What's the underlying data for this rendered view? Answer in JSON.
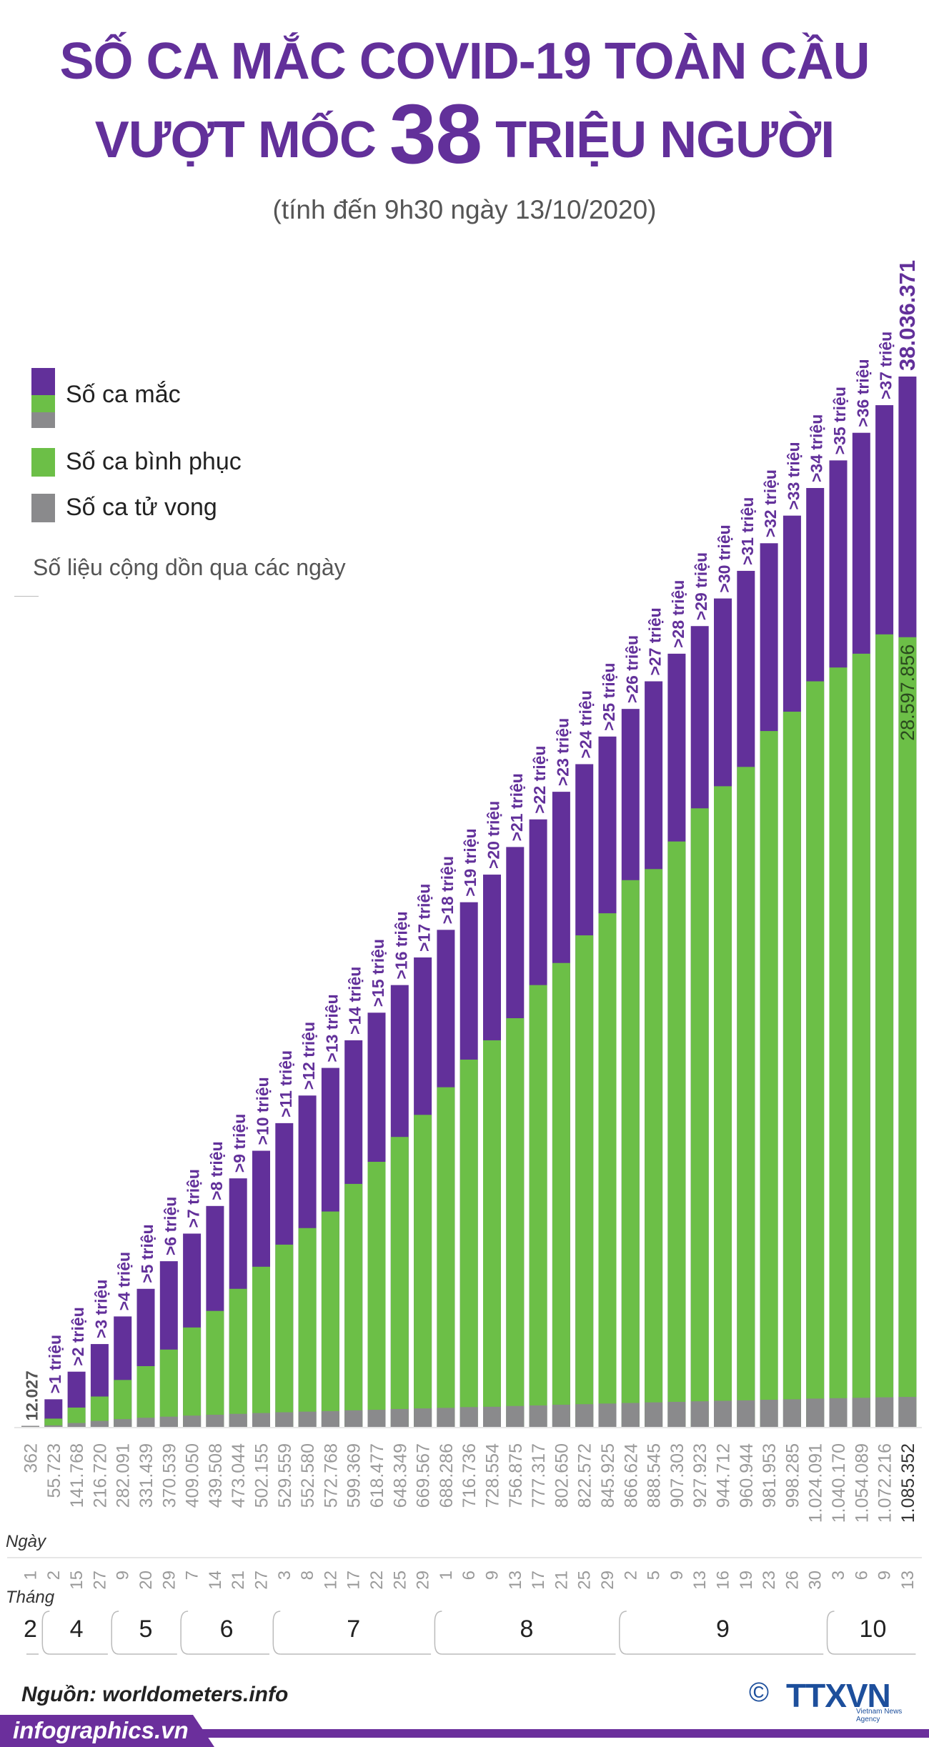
{
  "title": {
    "line1": "SỐ CA MẮC COVID-19 TOÀN CẦU",
    "line2_pre": "VƯỢT MỐC ",
    "line2_big": "38",
    "line2_post": " TRIỆU NGƯỜI",
    "subtitle": "(tính đến 9h30 ngày 13/10/2020)"
  },
  "legend": {
    "cases": "Số ca mắc",
    "recovered": "Số ca bình phục",
    "deaths": "Số ca tử vong",
    "note": "Số liệu cộng dồn qua các ngày"
  },
  "colors": {
    "cases": "#62309a",
    "recovered": "#6cbf47",
    "deaths": "#8a8a8c",
    "title": "#62309a",
    "source_logo": "#1d4f9c"
  },
  "axis_labels": {
    "day": "Ngày",
    "month": "Tháng"
  },
  "chart_data": {
    "type": "bar",
    "stacked": true,
    "series_order": [
      "deaths",
      "recovered",
      "cases"
    ],
    "days": [
      "1",
      "2",
      "15",
      "27",
      "9",
      "20",
      "29",
      "7",
      "14",
      "21",
      "27",
      "3",
      "8",
      "12",
      "17",
      "22",
      "25",
      "29",
      "1",
      "6",
      "9",
      "13",
      "17",
      "21",
      "25",
      "29",
      "2",
      "5",
      "9",
      "13",
      "16",
      "19",
      "23",
      "26",
      "30",
      "3",
      "6",
      "9",
      "13"
    ],
    "months": [
      {
        "label": "2",
        "count": 1
      },
      {
        "label": "4",
        "count": 3
      },
      {
        "label": "5",
        "count": 3
      },
      {
        "label": "6",
        "count": 4
      },
      {
        "label": "7",
        "count": 7
      },
      {
        "label": "8",
        "count": 8
      },
      {
        "label": "9",
        "count": 9
      },
      {
        "label": "10",
        "count": 4
      }
    ],
    "case_labels": [
      "12.027",
      ">1 triệu",
      ">2 triệu",
      ">3 triệu",
      ">4 triệu",
      ">5 triệu",
      ">6 triệu",
      ">7 triệu",
      ">8 triệu",
      ">9 triệu",
      ">10 triệu",
      ">11 triệu",
      ">12 triệu",
      ">13 triệu",
      ">14 triệu",
      ">15 triệu",
      ">16 triệu",
      ">17 triệu",
      ">18 triệu",
      ">19 triệu",
      ">20 triệu",
      ">21 triệu",
      ">22 triệu",
      ">23 triệu",
      ">24 triệu",
      ">25 triệu",
      ">26 triệu",
      ">27 triệu",
      ">28 triệu",
      ">29 triệu",
      ">30 triệu",
      ">31 triệu",
      ">32 triệu",
      ">33 triệu",
      ">34 triệu",
      ">35 triệu",
      ">36 triệu",
      ">37 triệu",
      "38.036.371"
    ],
    "cases": [
      12027,
      1000000,
      2000000,
      3000000,
      4000000,
      5000000,
      6000000,
      7000000,
      8000000,
      9000000,
      10000000,
      11000000,
      12000000,
      13000000,
      14000000,
      15000000,
      16000000,
      17000000,
      18000000,
      19000000,
      20000000,
      21000000,
      22000000,
      23000000,
      24000000,
      25000000,
      26000000,
      27000000,
      28000000,
      29000000,
      30000000,
      31000000,
      32000000,
      33000000,
      34000000,
      35000000,
      36000000,
      37000000,
      38036371
    ],
    "recovered": [
      300,
      300000,
      700000,
      1100000,
      1700000,
      2200000,
      2800000,
      3600000,
      4200000,
      5000000,
      5800000,
      6600000,
      7200000,
      7800000,
      8800000,
      9600000,
      10500000,
      11300000,
      12300000,
      13300000,
      14000000,
      14800000,
      16000000,
      16800000,
      17800000,
      18600000,
      19800000,
      20200000,
      21200000,
      22400000,
      23200000,
      23900000,
      25200000,
      25900000,
      27000000,
      27500000,
      28000000,
      28700000,
      28597856
    ],
    "recovered_label": "28.597.856",
    "deaths": [
      362,
      55723,
      141768,
      216720,
      282091,
      331439,
      370539,
      409050,
      439508,
      473044,
      502155,
      529559,
      552580,
      572768,
      599369,
      618477,
      648349,
      669567,
      688286,
      716736,
      728554,
      756875,
      777317,
      802650,
      822572,
      845925,
      866624,
      888545,
      907303,
      927923,
      944712,
      960944,
      981953,
      998285,
      1024091,
      1040170,
      1054089,
      1072216,
      1085352
    ],
    "death_labels": [
      "362",
      "55.723",
      "141.768",
      "216.720",
      "282.091",
      "331.439",
      "370.539",
      "409.050",
      "439.508",
      "473.044",
      "502.155",
      "529.559",
      "552.580",
      "572.768",
      "599.369",
      "618.477",
      "648.349",
      "669.567",
      "688.286",
      "716.736",
      "728.554",
      "756.875",
      "777.317",
      "802.650",
      "822.572",
      "845.925",
      "866.624",
      "888.545",
      "907.303",
      "927.923",
      "944.712",
      "960.944",
      "981.953",
      "998.285",
      "1.024.091",
      "1.040.170",
      "1.054.089",
      "1.072.216",
      "1.085.352"
    ]
  },
  "footer": {
    "source": "Nguồn: worldometers.info",
    "site": "infographics.vn",
    "copyright": "©",
    "logo": "TTXVN",
    "logo_sub": "Vietnam News Agency"
  }
}
